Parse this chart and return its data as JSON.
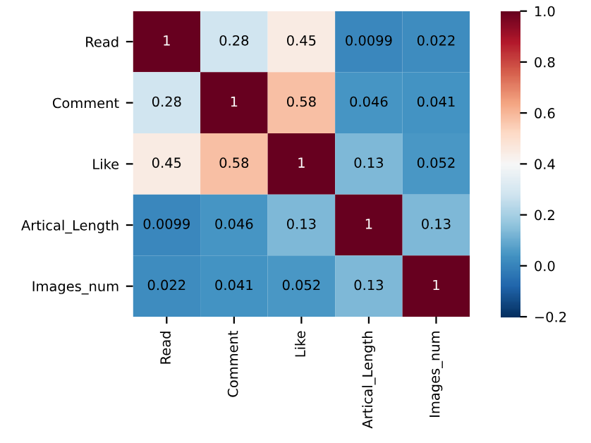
{
  "chart_data": {
    "type": "heatmap",
    "categories": [
      "Read",
      "Comment",
      "Like",
      "Artical_Length",
      "Images_num"
    ],
    "y_categories": [
      "Read",
      "Comment",
      "Like",
      "Artical_Length",
      "Images_num"
    ],
    "cells": [
      [
        1,
        0.28,
        0.45,
        0.0099,
        0.022
      ],
      [
        0.28,
        1,
        0.58,
        0.046,
        0.041
      ],
      [
        0.45,
        0.58,
        1,
        0.13,
        0.052
      ],
      [
        0.0099,
        0.046,
        0.13,
        1,
        0.13
      ],
      [
        0.022,
        0.041,
        0.052,
        0.13,
        1
      ]
    ],
    "clim": [
      -0.2,
      1.0
    ],
    "cticks": [
      {
        "value": -0.2,
        "label": "−0.2"
      },
      {
        "value": 0.0,
        "label": "0.0"
      },
      {
        "value": 0.2,
        "label": "0.2"
      },
      {
        "value": 0.4,
        "label": "0.4"
      },
      {
        "value": 0.6,
        "label": "0.6"
      },
      {
        "value": 0.8,
        "label": "0.8"
      },
      {
        "value": 1.0,
        "label": "1.0"
      }
    ],
    "data_labels": true
  }
}
